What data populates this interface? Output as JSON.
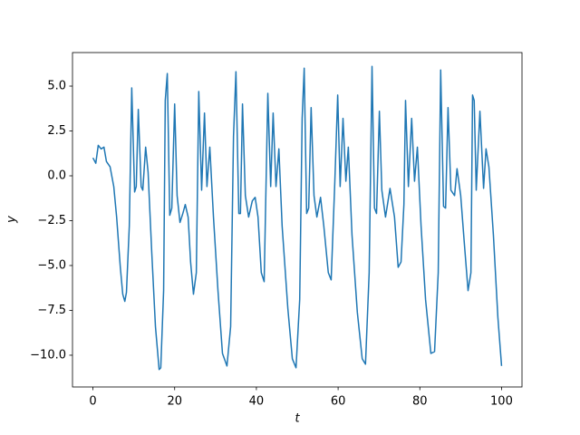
{
  "chart_data": {
    "type": "line",
    "xlabel": "t",
    "ylabel": "y",
    "color": "#1f77b4",
    "x": [
      0,
      0.7,
      1.3,
      2.0,
      2.7,
      3.3,
      4.2,
      5.1,
      5.8,
      6.7,
      7.3,
      7.8,
      8.2,
      8.9,
      9.5,
      10.2,
      10.6,
      11.1,
      11.8,
      12.2,
      12.9,
      13.5,
      14.4,
      15.3,
      16.2,
      16.6,
      17.3,
      17.7,
      18.2,
      18.8,
      19.3,
      20.0,
      20.6,
      21.3,
      22.0,
      22.6,
      23.3,
      23.9,
      24.6,
      25.3,
      25.9,
      26.6,
      27.3,
      27.9,
      28.6,
      29.5,
      30.6,
      31.7,
      32.8,
      33.7,
      34.4,
      35.0,
      35.7,
      36.1,
      36.6,
      37.3,
      38.1,
      39.0,
      39.7,
      40.4,
      41.2,
      41.9,
      42.8,
      43.5,
      44.1,
      44.8,
      45.5,
      46.3,
      47.7,
      48.8,
      49.7,
      50.6,
      51.2,
      51.7,
      52.3,
      52.8,
      53.4,
      54.1,
      54.8,
      55.7,
      56.5,
      57.6,
      58.3,
      59.2,
      59.9,
      60.5,
      61.2,
      61.9,
      62.5,
      63.4,
      64.7,
      65.9,
      66.7,
      67.6,
      68.3,
      68.9,
      69.4,
      70.1,
      70.7,
      71.6,
      72.7,
      73.8,
      74.7,
      75.4,
      76.1,
      76.5,
      77.2,
      78.0,
      78.7,
      79.4,
      80.3,
      81.4,
      82.7,
      83.6,
      84.5,
      85.1,
      85.8,
      86.3,
      86.9,
      87.6,
      88.5,
      89.1,
      90.0,
      90.9,
      91.8,
      92.5,
      92.9,
      93.3,
      93.8,
      94.7,
      95.6,
      96.2,
      96.9,
      98.0,
      99.1,
      100
    ],
    "values": [
      1.0,
      0.7,
      1.7,
      1.5,
      1.6,
      0.8,
      0.5,
      -0.6,
      -2.3,
      -5.1,
      -6.6,
      -7.0,
      -6.5,
      -2.8,
      4.9,
      -0.9,
      -0.6,
      3.7,
      -0.6,
      -0.8,
      1.6,
      0.2,
      -4.3,
      -8.4,
      -10.8,
      -10.7,
      -6.4,
      4.2,
      5.7,
      -2.2,
      -1.8,
      4.0,
      -1.1,
      -2.6,
      -2.1,
      -1.6,
      -2.3,
      -4.8,
      -6.6,
      -5.4,
      4.7,
      -0.8,
      3.5,
      -0.6,
      1.6,
      -2.3,
      -6.4,
      -9.9,
      -10.6,
      -8.4,
      2.2,
      5.8,
      -2.1,
      -2.1,
      4.0,
      -1.1,
      -2.3,
      -1.4,
      -1.2,
      -2.3,
      -5.4,
      -5.9,
      4.6,
      -0.6,
      3.5,
      -0.6,
      1.5,
      -2.8,
      -7.4,
      -10.2,
      -10.7,
      -6.9,
      3.2,
      6.0,
      -2.1,
      -1.8,
      3.8,
      -1.1,
      -2.3,
      -1.2,
      -2.8,
      -5.4,
      -5.8,
      -0.3,
      4.5,
      -0.6,
      3.2,
      -0.3,
      1.6,
      -3.3,
      -7.6,
      -10.2,
      -10.5,
      -5.4,
      6.1,
      -1.8,
      -2.1,
      3.6,
      -0.8,
      -2.3,
      -0.7,
      -2.3,
      -5.1,
      -4.8,
      -1.6,
      4.2,
      -0.6,
      3.2,
      -0.3,
      1.6,
      -2.8,
      -6.9,
      -9.9,
      -9.8,
      -5.4,
      5.9,
      -1.7,
      -1.8,
      3.8,
      -0.8,
      -1.1,
      0.4,
      -1.1,
      -3.8,
      -6.4,
      -5.4,
      4.5,
      4.2,
      -0.8,
      3.6,
      -0.7,
      1.5,
      0.5,
      -3.3,
      -7.9,
      -10.6
    ],
    "xlim": [
      -5,
      105
    ],
    "xticks": [
      0,
      20,
      40,
      60,
      80,
      100
    ],
    "ylim": [
      -11.77,
      6.87
    ],
    "yticks": [
      {
        "value": -10,
        "label": "−10.0"
      },
      {
        "value": -7.5,
        "label": "−7.5"
      },
      {
        "value": -5,
        "label": "−5.0"
      },
      {
        "value": -2.5,
        "label": "−2.5"
      },
      {
        "value": 0,
        "label": "0.0"
      },
      {
        "value": 2.5,
        "label": "2.5"
      },
      {
        "value": 5,
        "label": "5.0"
      }
    ],
    "grid": false
  }
}
